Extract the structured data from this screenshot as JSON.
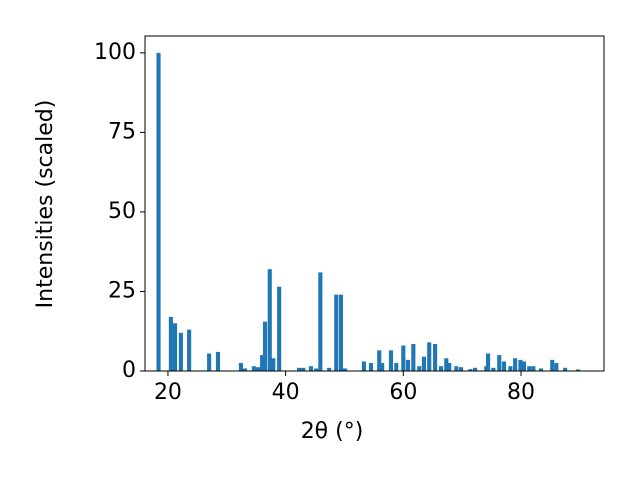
{
  "chart_data": {
    "type": "bar",
    "xlabel": "2θ (°)",
    "ylabel": "Intensities (scaled)",
    "color": "#1f77b4",
    "grid": false,
    "x": [
      18.4,
      20.5,
      21.2,
      22.2,
      23.6,
      27.0,
      28.5,
      32.4,
      33.1,
      34.6,
      35.3,
      36.0,
      36.5,
      37.3,
      37.9,
      38.9,
      42.3,
      43.0,
      44.3,
      45.2,
      45.9,
      47.4,
      48.6,
      49.4,
      50.1,
      53.3,
      54.5,
      55.9,
      56.4,
      57.9,
      58.8,
      60.0,
      60.8,
      61.7,
      62.7,
      63.5,
      64.4,
      65.4,
      66.4,
      67.3,
      67.8,
      69.0,
      69.8,
      71.4,
      72.2,
      74.1,
      74.4,
      75.3,
      76.3,
      77.1,
      78.2,
      79.0,
      79.9,
      80.5,
      81.4,
      82.1,
      83.4,
      85.3,
      86.0,
      87.5,
      89.7
    ],
    "values": [
      100,
      17,
      15,
      12,
      13,
      5.5,
      6,
      2.5,
      0.8,
      1.5,
      1.2,
      5,
      15.5,
      32,
      4,
      26.5,
      1,
      1,
      1.5,
      0.8,
      31,
      1,
      24,
      24,
      0.8,
      3,
      2.5,
      6.5,
      2.5,
      6.5,
      2.5,
      8,
      3.5,
      8.5,
      1.5,
      4.5,
      9,
      8.5,
      1.5,
      4,
      2.5,
      1.5,
      1.2,
      0.6,
      1,
      1.5,
      5.5,
      1,
      5,
      3,
      1.5,
      4,
      3.5,
      3,
      1.5,
      1.5,
      0.8,
      3.5,
      2.5,
      1,
      0.5
    ],
    "xlim": [
      16.1,
      94.1
    ],
    "ylim": [
      0,
      105.3
    ],
    "xticks": [
      20,
      40,
      60,
      80
    ],
    "yticks": [
      0,
      25,
      50,
      75,
      100
    ]
  }
}
